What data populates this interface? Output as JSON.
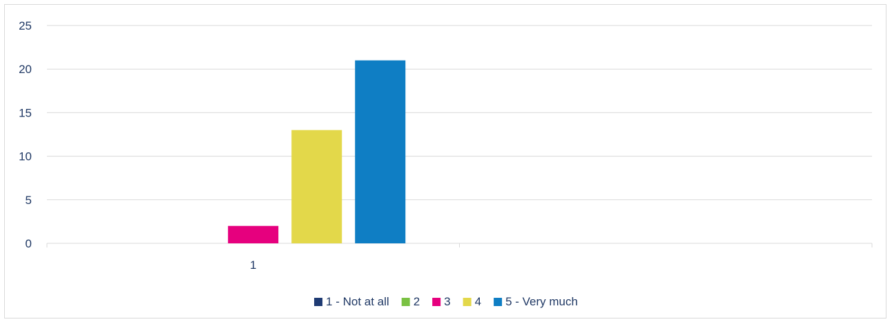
{
  "chart_data": {
    "type": "bar",
    "categories": [
      "1"
    ],
    "series": [
      {
        "name": "1 - Not at all",
        "values": [
          0
        ],
        "color": "#1f3b73"
      },
      {
        "name": "2",
        "values": [
          0
        ],
        "color": "#7ac143"
      },
      {
        "name": "3",
        "values": [
          2
        ],
        "color": "#e6007e"
      },
      {
        "name": "4",
        "values": [
          13
        ],
        "color": "#e3d84a"
      },
      {
        "name": "5 - Very much",
        "values": [
          21
        ],
        "color": "#0f7ec4"
      }
    ],
    "ylim": [
      0,
      25
    ],
    "yticks": [
      0,
      5,
      10,
      15,
      20,
      25
    ],
    "grid": true,
    "legend_position": "bottom",
    "title": "",
    "xlabel": "",
    "ylabel": ""
  }
}
